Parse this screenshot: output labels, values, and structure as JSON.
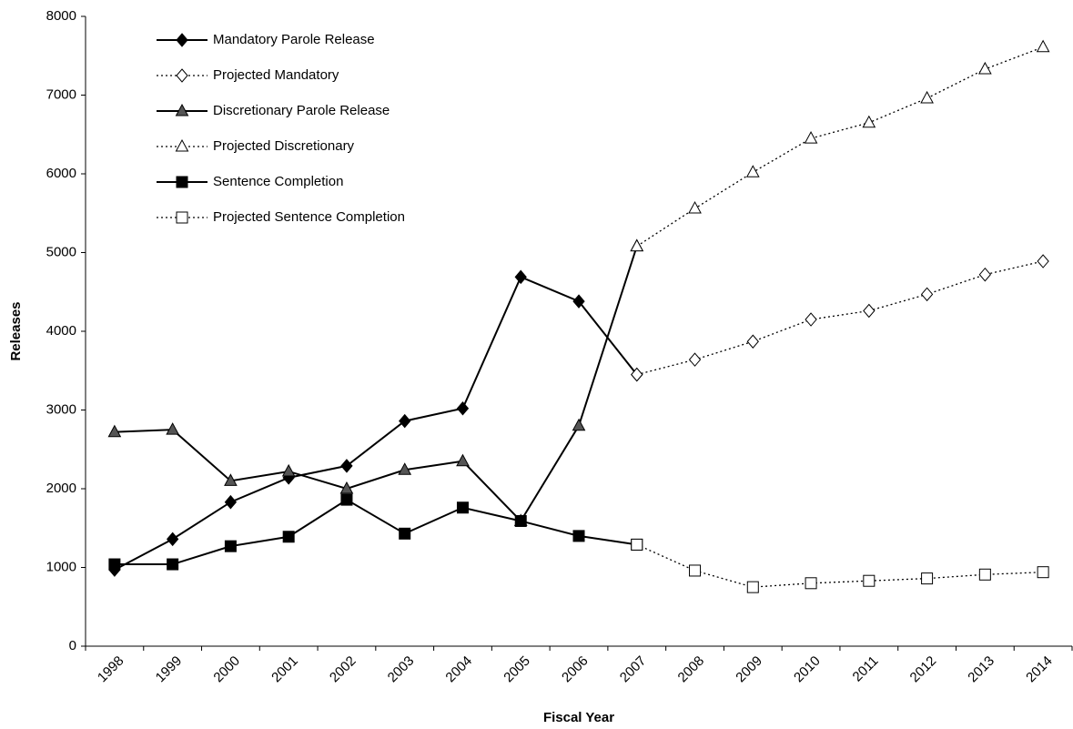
{
  "chart_data": {
    "type": "line",
    "x_label": "Fiscal Year",
    "y_label": "Releases",
    "categories": [
      "1998",
      "1999",
      "2000",
      "2001",
      "2002",
      "2003",
      "2004",
      "2005",
      "2006",
      "2007",
      "2008",
      "2009",
      "2010",
      "2011",
      "2012",
      "2013",
      "2014"
    ],
    "series": [
      {
        "name": "Mandatory Parole Release",
        "color": "#000000",
        "marker": "diamond",
        "marker_fill": "#000000",
        "line_style": "solid",
        "values": [
          970,
          1360,
          1830,
          2140,
          2290,
          2860,
          3020,
          4690,
          4380,
          3450,
          null,
          null,
          null,
          null,
          null,
          null,
          null
        ]
      },
      {
        "name": "Projected Mandatory",
        "color": "#000000",
        "marker": "diamond",
        "marker_fill": "#ffffff",
        "line_style": "dotted",
        "values": [
          null,
          null,
          null,
          null,
          null,
          null,
          null,
          null,
          null,
          3450,
          3640,
          3870,
          4150,
          4260,
          4470,
          4720,
          4890
        ]
      },
      {
        "name": "Discretionary Parole Release",
        "color": "#000000",
        "marker": "triangle",
        "marker_fill": "#555555",
        "line_style": "solid",
        "values": [
          2720,
          2750,
          2100,
          2220,
          2000,
          2240,
          2350,
          1590,
          2800,
          5080,
          null,
          null,
          null,
          null,
          null,
          null,
          null
        ]
      },
      {
        "name": "Projected Discretionary",
        "color": "#000000",
        "marker": "triangle",
        "marker_fill": "#ffffff",
        "line_style": "dotted",
        "values": [
          null,
          null,
          null,
          null,
          null,
          null,
          null,
          null,
          null,
          5080,
          5560,
          6020,
          6450,
          6650,
          6960,
          7330,
          7610
        ]
      },
      {
        "name": "Sentence Completion",
        "color": "#000000",
        "marker": "square",
        "marker_fill": "#000000",
        "line_style": "solid",
        "values": [
          1040,
          1040,
          1270,
          1390,
          1860,
          1430,
          1760,
          1590,
          1400,
          1290,
          null,
          null,
          null,
          null,
          null,
          null,
          null
        ]
      },
      {
        "name": "Projected Sentence Completion",
        "color": "#000000",
        "marker": "square",
        "marker_fill": "#ffffff",
        "line_style": "dotted",
        "values": [
          null,
          null,
          null,
          null,
          null,
          null,
          null,
          null,
          null,
          1290,
          960,
          750,
          800,
          830,
          860,
          910,
          940
        ]
      }
    ],
    "ylim": [
      0,
      8000
    ],
    "yticks": [
      0,
      1000,
      2000,
      3000,
      4000,
      5000,
      6000,
      7000,
      8000
    ],
    "grid": false,
    "legend_position": "upper left"
  }
}
